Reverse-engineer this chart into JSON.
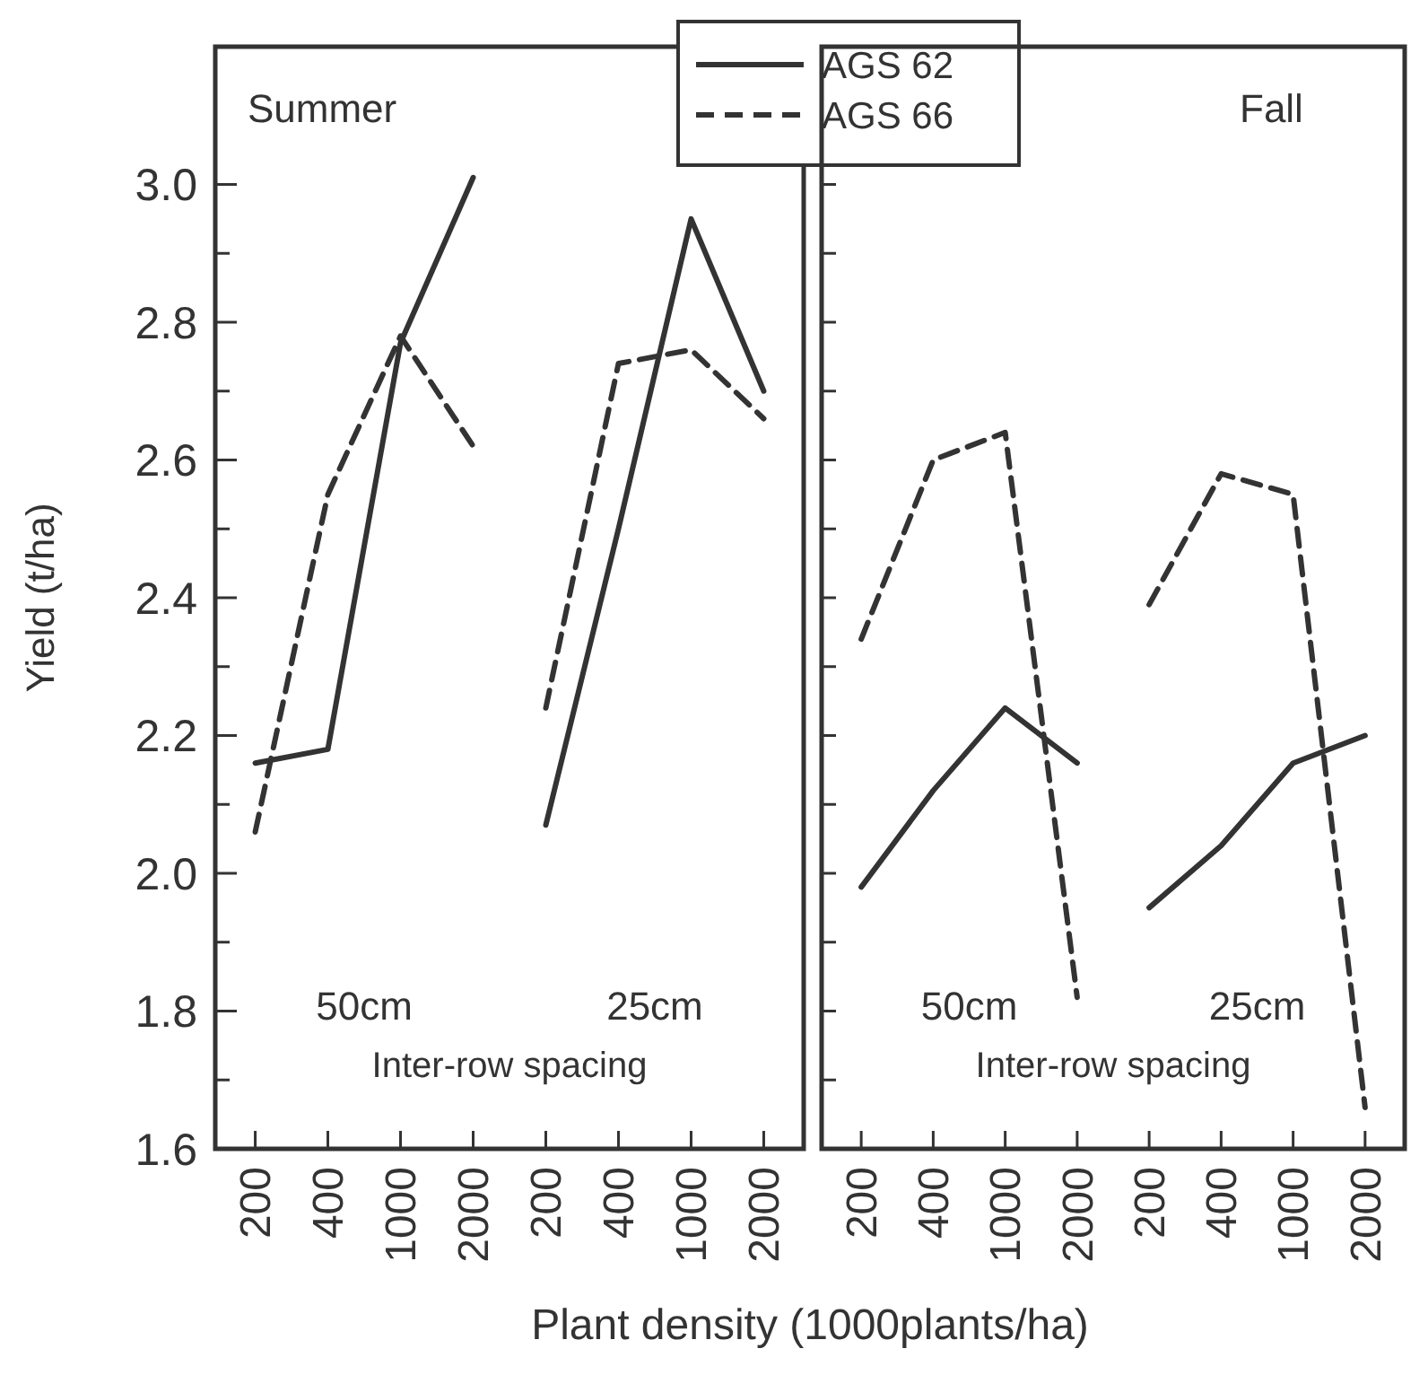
{
  "chart_data": [
    {
      "type": "line",
      "ylabel": "Yield (t/ha)",
      "xlabel": "Plant density (1000plants/ha)",
      "categories": [
        "200",
        "400",
        "1000",
        "2000",
        "200",
        "400",
        "1000",
        "2000"
      ],
      "ylim": [
        1.6,
        3.2
      ],
      "yticks": [
        1.6,
        {
          "value": 1.7,
          "label": null
        },
        1.8,
        {
          "value": 1.9,
          "label": null
        },
        {
          "value": 2,
          "label": "2.0"
        },
        {
          "value": 2.1,
          "label": null
        },
        2.2,
        {
          "value": 2.3,
          "label": null
        },
        2.4,
        {
          "value": 2.5,
          "label": null
        },
        2.6,
        {
          "value": 2.7,
          "label": null
        },
        2.8,
        {
          "value": 2.9,
          "label": null
        },
        {
          "value": 3,
          "label": "3.0"
        }
      ],
      "legend": "top right",
      "marker": "none",
      "annotations": [
        "Summer",
        "50cm",
        "25cm",
        "Inter-row spacing"
      ],
      "series": [
        {
          "name": "AGS 62",
          "color": "#333333",
          "line_style": "solid",
          "values": [
            2.16,
            2.18,
            2.77,
            3.01,
            null,
            null,
            null,
            null
          ]
        },
        {
          "color": "#333333",
          "line_style": "solid",
          "values": [
            null,
            null,
            null,
            null,
            2.07,
            2.5,
            2.95,
            2.7
          ]
        },
        {
          "name": "AGS 66",
          "color": "#333333",
          "line_style": "dashed",
          "values": [
            2.06,
            2.55,
            2.78,
            2.62,
            null,
            null,
            null,
            null
          ]
        },
        {
          "color": "#333333",
          "line_style": "dashed",
          "values": [
            null,
            null,
            null,
            null,
            2.24,
            2.74,
            2.76,
            2.66
          ]
        }
      ]
    },
    {
      "type": "line",
      "categories": [
        "200",
        "400",
        "1000",
        "2000",
        "200",
        "400",
        "1000",
        "2000"
      ],
      "ylim": [
        1.6,
        3.2
      ],
      "yticks": [
        {
          "value": 1.6,
          "label": null
        },
        {
          "value": 1.7,
          "label": null
        },
        {
          "value": 1.8,
          "label": null
        },
        {
          "value": 1.9,
          "label": null
        },
        {
          "value": 2.0,
          "label": null
        },
        {
          "value": 2.1,
          "label": null
        },
        {
          "value": 2.2,
          "label": null
        },
        {
          "value": 2.3,
          "label": null
        },
        {
          "value": 2.4,
          "label": null
        },
        {
          "value": 2.5,
          "label": null
        },
        {
          "value": 2.6,
          "label": null
        },
        {
          "value": 2.7,
          "label": null
        },
        {
          "value": 2.8,
          "label": null
        },
        {
          "value": 2.9,
          "label": null
        },
        {
          "value": 3.0,
          "label": null
        }
      ],
      "tick_labels": "x",
      "marker": "none",
      "annotations": [
        "Fall",
        "50cm",
        "25cm",
        "Inter-row spacing"
      ],
      "series": [
        {
          "color": "#333333",
          "line_style": "solid",
          "values": [
            1.98,
            2.12,
            2.24,
            2.16,
            null,
            null,
            null,
            null
          ]
        },
        {
          "color": "#333333",
          "line_style": "solid",
          "values": [
            null,
            null,
            null,
            null,
            1.95,
            2.04,
            2.16,
            2.2
          ]
        },
        {
          "color": "#333333",
          "line_style": "dashed",
          "values": [
            2.34,
            2.6,
            2.64,
            1.82,
            null,
            null,
            null,
            null
          ]
        },
        {
          "color": "#333333",
          "line_style": "dashed",
          "values": [
            null,
            null,
            null,
            null,
            2.39,
            2.58,
            2.55,
            1.66
          ]
        }
      ]
    }
  ]
}
